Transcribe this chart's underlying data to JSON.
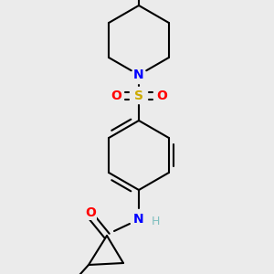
{
  "bg_color": "#ebebeb",
  "bond_color": "#000000",
  "N_color": "#0000ff",
  "O_color": "#ff0000",
  "S_color": "#ccaa00",
  "H_color": "#7fbfbf",
  "lw": 1.5,
  "figsize": [
    3.0,
    3.0
  ],
  "dpi": 100,
  "xlim": [
    0,
    300
  ],
  "ylim": [
    0,
    300
  ]
}
